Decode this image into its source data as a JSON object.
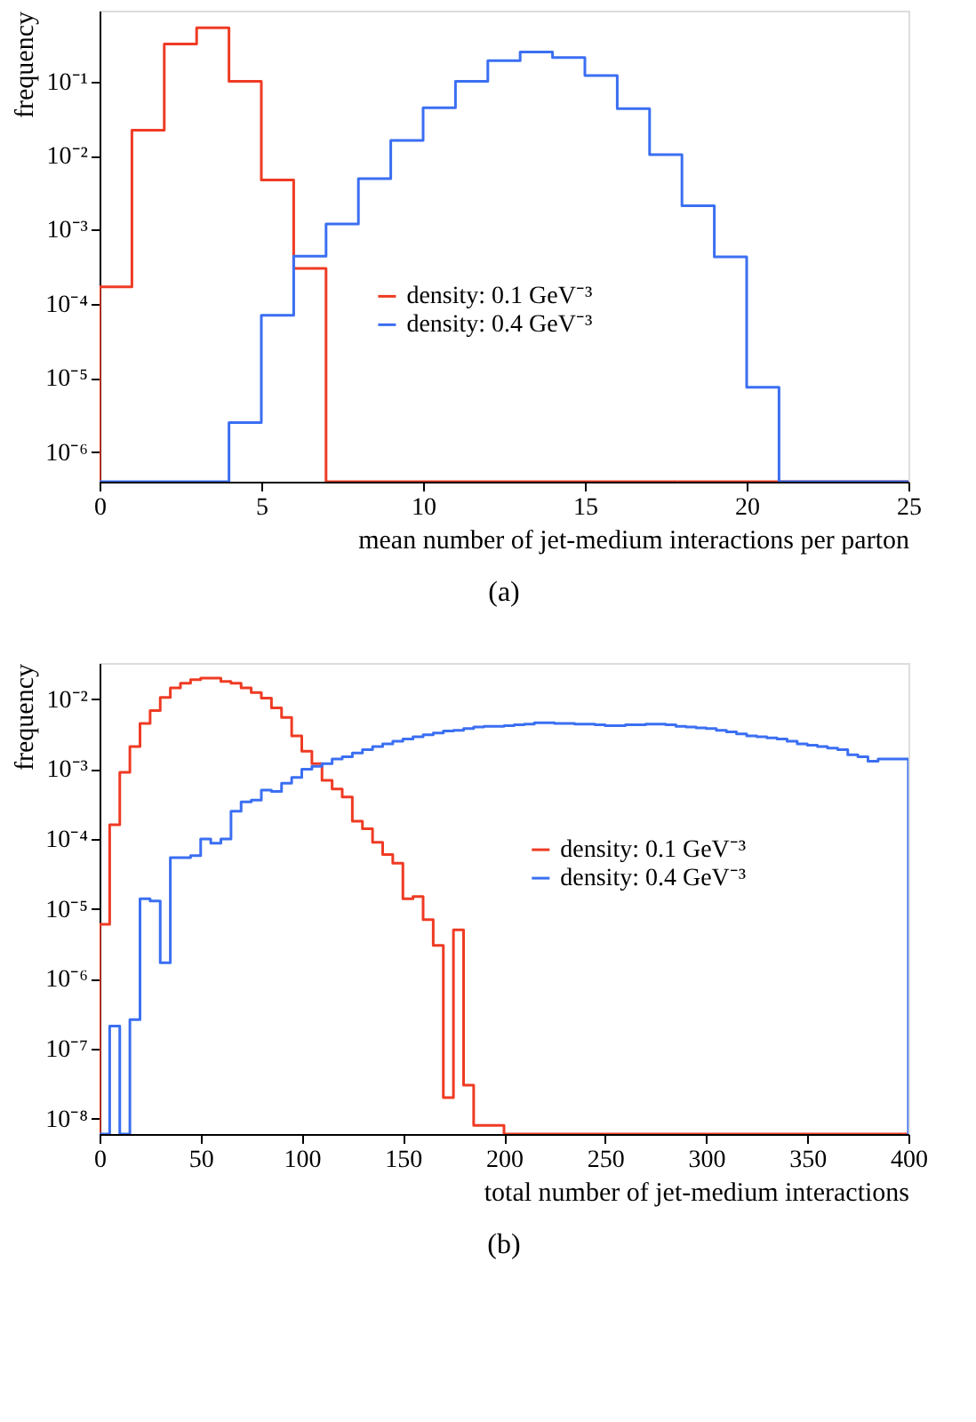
{
  "chart_data": [
    {
      "type": "histogram",
      "xlabel": "mean number of jet-medium interactions per parton",
      "ylabel": "frequency",
      "annotations": [
        "(a)"
      ],
      "log": true,
      "grid": false,
      "legend": "center",
      "marker": "none",
      "bins": [
        0,
        1,
        2,
        3,
        4,
        5,
        6,
        7,
        8,
        9,
        10,
        11,
        12,
        13,
        14,
        15,
        16,
        17,
        18,
        19,
        20,
        21,
        22,
        23,
        24,
        25
      ],
      "series": [
        {
          "name": "density: 0.1 GeV⁻³",
          "color": "#ef3b24",
          "values": [
            0.00017,
            0.022,
            0.32,
            0.53,
            0.1,
            0.0047,
            0.0003,
            null,
            null,
            null,
            null,
            null,
            null,
            null,
            null,
            null,
            null,
            null,
            null,
            null,
            null,
            null,
            null,
            null,
            null
          ]
        },
        {
          "name": "density: 0.4 GeV⁻³",
          "color": "#3b6ff2",
          "values": [
            null,
            null,
            null,
            null,
            2.5e-06,
            7e-05,
            0.00044,
            0.0012,
            0.0049,
            0.016,
            0.044,
            0.1,
            0.19,
            0.25,
            0.21,
            0.12,
            0.043,
            0.0103,
            0.0021,
            0.00043,
            7.5e-06,
            null,
            null,
            null,
            null
          ]
        }
      ],
      "xlim": [
        0,
        25
      ],
      "xticks": [
        0,
        5,
        10,
        15,
        20,
        25
      ],
      "ylim": [
        4e-07,
        0.9
      ],
      "yticks": [
        {
          "value": 1e-06,
          "label": "10⁻⁶"
        },
        {
          "value": 1e-05,
          "label": "10⁻⁵"
        },
        {
          "value": 0.0001,
          "label": "10⁻⁴"
        },
        {
          "value": 0.001,
          "label": "10⁻³"
        },
        {
          "value": 0.01,
          "label": "10⁻²"
        },
        {
          "value": 0.1,
          "label": "10⁻¹"
        }
      ]
    },
    {
      "type": "histogram",
      "xlabel": "total number of jet-medium interactions",
      "ylabel": "frequency",
      "annotations": [
        "(b)"
      ],
      "log": true,
      "grid": false,
      "legend": "right",
      "marker": "none",
      "bins": [
        0,
        5,
        10,
        15,
        20,
        25,
        30,
        35,
        40,
        45,
        50,
        55,
        60,
        65,
        70,
        75,
        80,
        85,
        90,
        95,
        100,
        105,
        110,
        115,
        120,
        125,
        130,
        135,
        140,
        145,
        150,
        155,
        160,
        165,
        170,
        175,
        180,
        185,
        190,
        195,
        200,
        205,
        210,
        215,
        220,
        225,
        230,
        235,
        240,
        245,
        250,
        255,
        260,
        265,
        270,
        275,
        280,
        285,
        290,
        295,
        300,
        305,
        310,
        315,
        320,
        325,
        330,
        335,
        340,
        345,
        350,
        355,
        360,
        365,
        370,
        375,
        380,
        385,
        390,
        395,
        400
      ],
      "series": [
        {
          "name": "density: 0.1 GeV⁻³",
          "color": "#ef3b24",
          "values": [
            6e-06,
            0.00016,
            0.0009,
            0.0021,
            0.0045,
            0.0069,
            0.0106,
            0.0145,
            0.017,
            0.019,
            0.02,
            0.02,
            0.018,
            0.017,
            0.0145,
            0.0125,
            0.0104,
            0.0075,
            0.0055,
            0.003,
            0.0018,
            0.0012,
            0.00069,
            0.00052,
            0.0004,
            0.00018,
            0.00014,
            9e-05,
            6e-05,
            4.5e-05,
            1.4e-05,
            1.5e-05,
            7e-06,
            3e-06,
            2e-08,
            5e-06,
            3e-08,
            8e-09,
            8e-09,
            8e-09,
            null,
            null,
            null,
            null,
            null,
            null,
            null,
            null,
            null,
            null,
            null,
            null,
            null,
            null,
            null,
            null,
            null,
            null,
            null,
            null,
            null,
            null,
            null,
            null,
            null,
            null,
            null,
            null,
            null,
            null,
            null,
            null,
            null,
            null,
            null,
            null,
            null,
            null,
            null,
            null
          ]
        },
        {
          "name": "density: 0.4 GeV⁻³",
          "color": "#3b6ff2",
          "values": [
            null,
            2.1e-07,
            null,
            2.6e-07,
            1.4e-05,
            1.3e-05,
            1.7e-06,
            5.4e-05,
            5.4e-05,
            5.8e-05,
            0.0001,
            8.7e-05,
            0.0001,
            0.00025,
            0.00034,
            0.00036,
            0.0005,
            0.00048,
            0.00063,
            0.00076,
            0.001,
            0.0011,
            0.0012,
            0.0014,
            0.0015,
            0.0017,
            0.0019,
            0.0021,
            0.0023,
            0.0025,
            0.0027,
            0.0029,
            0.0031,
            0.0033,
            0.0035,
            0.0036,
            0.0038,
            0.004,
            0.0041,
            0.0041,
            0.0042,
            0.0043,
            0.0044,
            0.0046,
            0.0046,
            0.0045,
            0.0045,
            0.0044,
            0.0044,
            0.0043,
            0.0042,
            0.0042,
            0.0043,
            0.0043,
            0.0044,
            0.0044,
            0.0043,
            0.0041,
            0.004,
            0.0039,
            0.0038,
            0.0036,
            0.0034,
            0.0032,
            0.003,
            0.0029,
            0.0028,
            0.0027,
            0.0025,
            0.0023,
            0.0022,
            0.0021,
            0.002,
            0.0019,
            0.0016,
            0.0015,
            0.0013,
            0.0014,
            0.0014,
            0.0014
          ]
        }
      ],
      "xlim": [
        0,
        400
      ],
      "xticks": [
        0,
        50,
        100,
        150,
        200,
        250,
        300,
        350,
        400
      ],
      "ylim": [
        6e-09,
        0.033
      ],
      "yticks": [
        {
          "value": 1e-08,
          "label": "10⁻⁸"
        },
        {
          "value": 1e-07,
          "label": "10⁻⁷"
        },
        {
          "value": 1e-06,
          "label": "10⁻⁶"
        },
        {
          "value": 1e-05,
          "label": "10⁻⁵"
        },
        {
          "value": 0.0001,
          "label": "10⁻⁴"
        },
        {
          "value": 0.001,
          "label": "10⁻³"
        },
        {
          "value": 0.01,
          "label": "10⁻²"
        }
      ]
    }
  ]
}
